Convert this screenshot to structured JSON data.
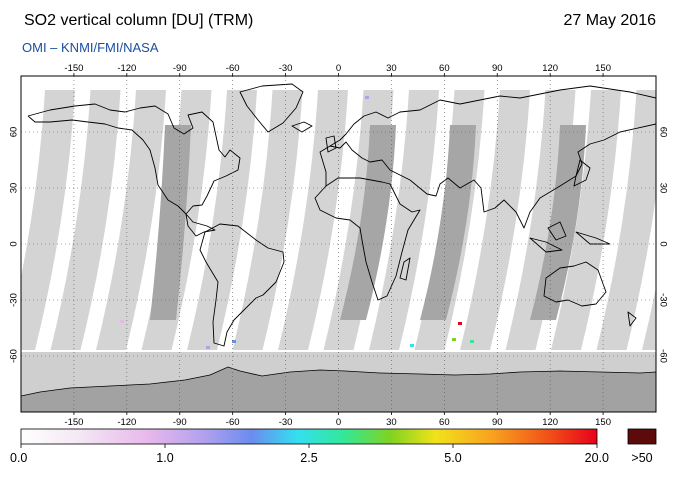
{
  "header": {
    "title": "SO2 vertical column [DU] (TRM)",
    "date": "27 May 2016",
    "source": "OMI  –  KNMI/FMI/NASA"
  },
  "map": {
    "projection": "equirectangular",
    "lon_range": [
      -180,
      180
    ],
    "lat_range": [
      -90,
      90
    ],
    "lon_ticks": [
      -150,
      -120,
      -90,
      -60,
      -30,
      0,
      30,
      60,
      90,
      120,
      150
    ],
    "lat_ticks": [
      60,
      30,
      0,
      -30,
      -60
    ],
    "grid": "dotted",
    "colors": {
      "swath_light": "#d4d4d4",
      "swath_dark": "#a6a6a6",
      "antarctica": "#a2a2a2",
      "polar_band": "#cfcfcf",
      "coastline": "#000000"
    }
  },
  "colorbar": {
    "tick_labels": [
      "0.0",
      "1.0",
      "2.5",
      "5.0",
      "20.0"
    ],
    "overflow_label": ">50",
    "overflow_color": "#5c0a0a",
    "gradient": [
      {
        "stop": 0.0,
        "color": "#ffffff"
      },
      {
        "stop": 0.1,
        "color": "#f4e8f4"
      },
      {
        "stop": 0.22,
        "color": "#e8b8ec"
      },
      {
        "stop": 0.32,
        "color": "#b0a0ee"
      },
      {
        "stop": 0.4,
        "color": "#6b8cf0"
      },
      {
        "stop": 0.48,
        "color": "#33e0f0"
      },
      {
        "stop": 0.56,
        "color": "#33e89a"
      },
      {
        "stop": 0.64,
        "color": "#7ed321"
      },
      {
        "stop": 0.72,
        "color": "#f2e21a"
      },
      {
        "stop": 0.82,
        "color": "#f8a020"
      },
      {
        "stop": 0.92,
        "color": "#f04e18"
      },
      {
        "stop": 1.0,
        "color": "#e8001c"
      }
    ]
  }
}
